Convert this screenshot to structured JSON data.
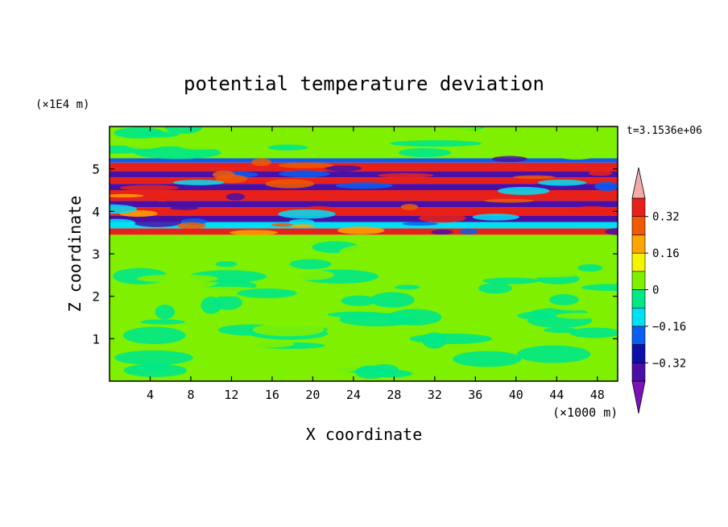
{
  "chart_data": {
    "type": "heatmap",
    "title": "potential temperature deviation",
    "xlabel": "X coordinate",
    "ylabel": "Z coordinate",
    "x_unit": "(×1000 m)",
    "y_unit": "(×1E4 m)",
    "time_label": "t=3.1536e+06",
    "xlim": [
      0,
      50
    ],
    "ylim": [
      0,
      6
    ],
    "x_ticks": [
      4,
      8,
      12,
      16,
      20,
      24,
      28,
      32,
      36,
      40,
      44,
      48
    ],
    "y_ticks": [
      1,
      2,
      3,
      4,
      5
    ],
    "colorbar": {
      "levels": [
        -0.4,
        -0.32,
        -0.24,
        -0.16,
        -0.08,
        0,
        0.08,
        0.16,
        0.24,
        0.32,
        0.4
      ],
      "tick_labels": [
        "0.32",
        "0.16",
        "0",
        "−0.16",
        "−0.32"
      ],
      "tick_values": [
        0.32,
        0.16,
        0,
        -0.16,
        -0.32
      ],
      "colors_low_to_high": [
        "#7b12b8",
        "#4a0fa5",
        "#0d0fa8",
        "#0a5ef0",
        "#00e0f5",
        "#00e887",
        "#7ff000",
        "#f5f500",
        "#ffa500",
        "#f05a00",
        "#e8201a",
        "#f5aaaa"
      ],
      "under_color": "#7b12b8",
      "over_color": "#f5aaaa"
    },
    "bands": [
      {
        "z": [
          0.0,
          3.45
        ],
        "value": 0.04,
        "description": "green / light-green mottled lower layer"
      },
      {
        "z": [
          3.45,
          3.6
        ],
        "value": 0.38,
        "note": "pink band"
      },
      {
        "z": [
          3.6,
          3.75
        ],
        "value": -0.1
      },
      {
        "z": [
          3.75,
          3.9
        ],
        "value": -0.4,
        "note": "purple band"
      },
      {
        "z": [
          3.9,
          4.1
        ],
        "value": 0.38
      },
      {
        "z": [
          4.1,
          4.25
        ],
        "value": -0.36
      },
      {
        "z": [
          4.25,
          4.5
        ],
        "value": 0.38
      },
      {
        "z": [
          4.5,
          4.65
        ],
        "value": -0.4
      },
      {
        "z": [
          4.65,
          4.8
        ],
        "value": 0.38
      },
      {
        "z": [
          4.8,
          4.95
        ],
        "value": -0.4
      },
      {
        "z": [
          4.95,
          5.15
        ],
        "value": 0.38
      },
      {
        "z": [
          5.15,
          5.25
        ],
        "value": -0.2
      },
      {
        "z": [
          5.25,
          6.0
        ],
        "value": 0.04
      }
    ]
  }
}
